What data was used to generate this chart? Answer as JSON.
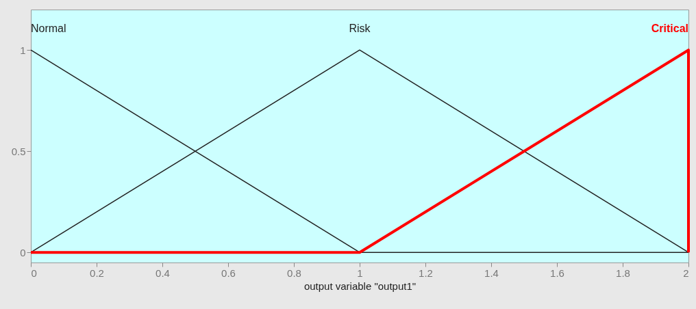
{
  "chart_data": {
    "type": "line",
    "xlabel": "output variable \"output1\"",
    "xlim": [
      0,
      2
    ],
    "xticks": [
      0,
      0.2,
      0.4,
      0.6,
      0.8,
      1,
      1.2,
      1.4,
      1.6,
      1.8,
      2
    ],
    "ylim": [
      -0.05,
      1.2
    ],
    "yticks": [
      0,
      0.5,
      1
    ],
    "grid": false,
    "series": [
      {
        "name": "Normal",
        "color": "#222222",
        "x": [
          0,
          1,
          2
        ],
        "values": [
          1,
          0,
          0
        ]
      },
      {
        "name": "Risk",
        "color": "#222222",
        "x": [
          0,
          1,
          2
        ],
        "values": [
          0,
          1,
          0
        ]
      },
      {
        "name": "Critical",
        "color": "#ff0000",
        "x": [
          0,
          1,
          2,
          2
        ],
        "values": [
          0,
          0,
          1,
          0
        ]
      }
    ]
  }
}
